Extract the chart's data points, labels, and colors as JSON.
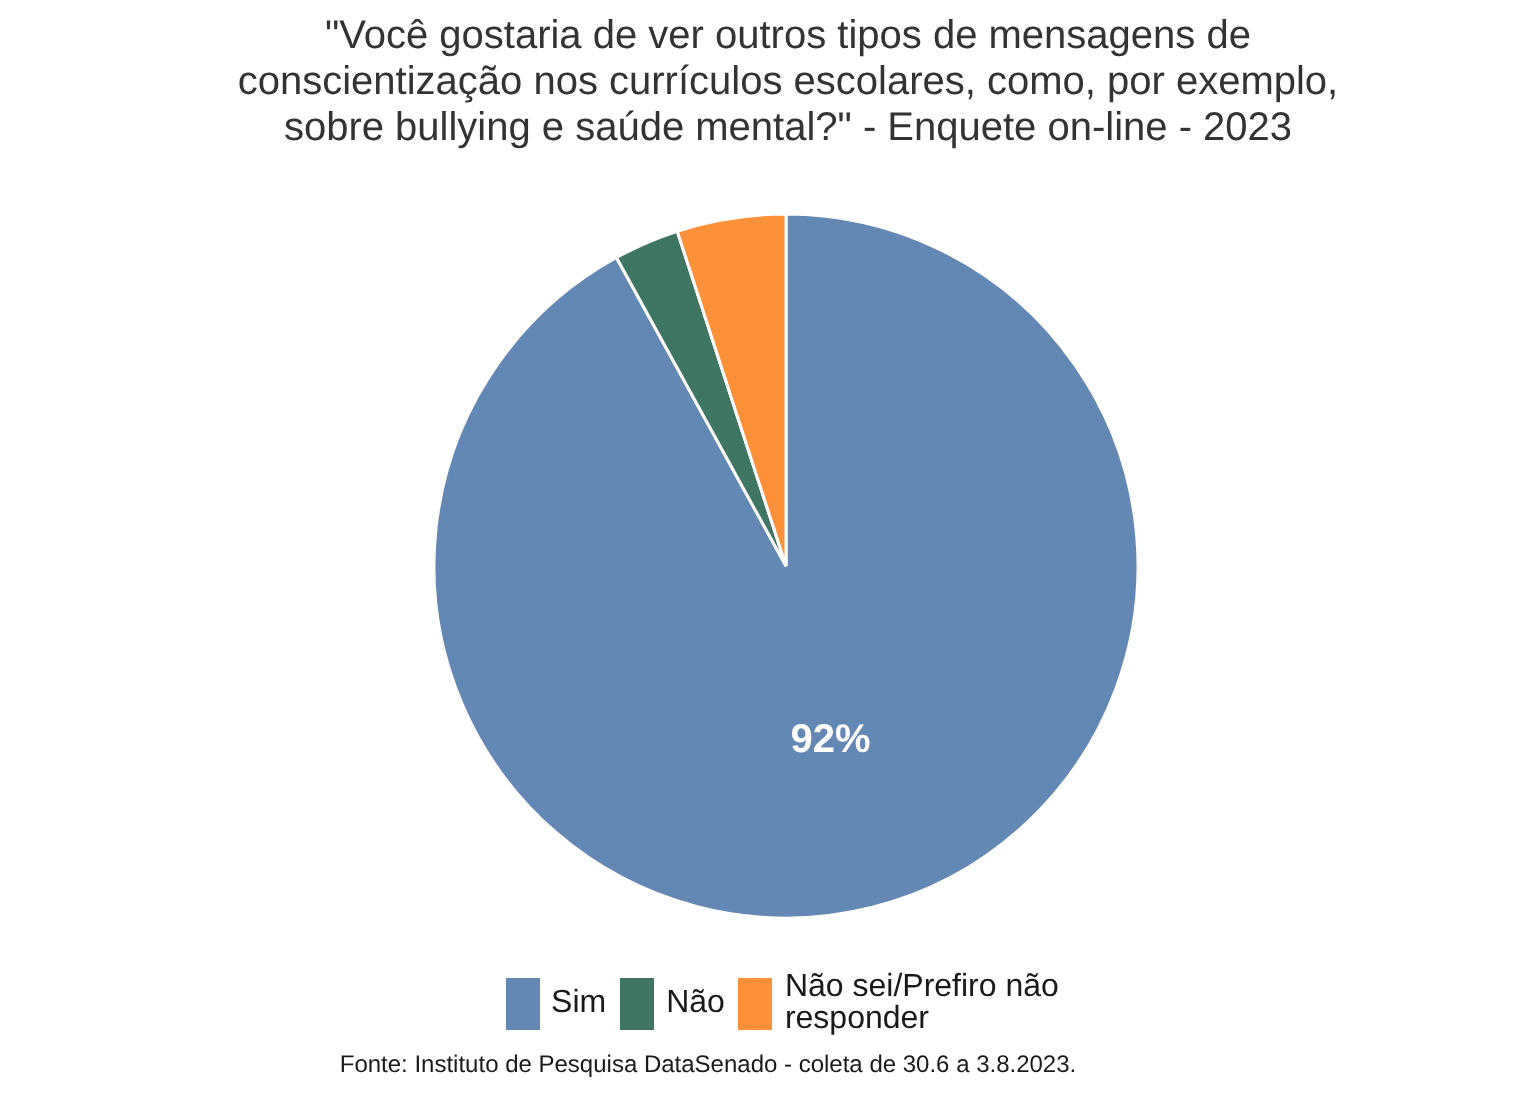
{
  "chart_data": {
    "type": "pie",
    "title": "\"Você gostaria de ver outros tipos de mensagens de conscientização nos currículos escolares, como, por exemplo, sobre bullying e saúde mental?\" - Enquete on-line - 2023",
    "categories": [
      "Sim",
      "Não",
      "Não sei/Prefiro não responder"
    ],
    "values": [
      92,
      3,
      5
    ],
    "colors": [
      "#6388b4",
      "#3f7563",
      "#fc913a"
    ],
    "value_labels": [
      "92%",
      null,
      null
    ],
    "legend": "bottom",
    "annotations": [
      "Fonte: Instituto de Pesquisa DataSenado - coleta de 30.6 a 3.8.2023."
    ]
  }
}
